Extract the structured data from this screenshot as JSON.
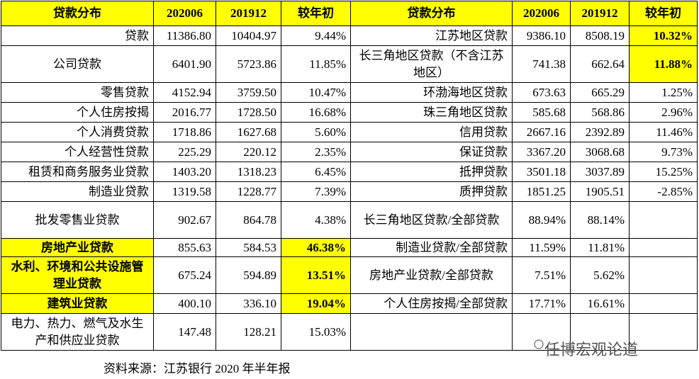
{
  "table": {
    "header": [
      "贷款分布",
      "202006",
      "201912",
      "较年初",
      "贷款分布",
      "202006",
      "201912",
      "较年初"
    ],
    "rows": [
      [
        "贷款",
        "11386.80",
        "10404.97",
        "9.44%",
        "江苏地区贷款",
        "9386.10",
        "8508.19",
        "10.32%"
      ],
      [
        "公司贷款",
        "6401.90",
        "5723.86",
        "11.85%",
        "长三角地区贷款（不含江苏地区）",
        "741.38",
        "662.64",
        "11.88%"
      ],
      [
        "零售贷款",
        "4152.94",
        "3759.50",
        "10.47%",
        "环渤海地区贷款",
        "673.63",
        "665.29",
        "1.25%"
      ],
      [
        "个人住房按揭",
        "2016.77",
        "1728.50",
        "16.68%",
        "珠三角地区贷款",
        "585.68",
        "568.86",
        "2.96%"
      ],
      [
        "个人消费贷款",
        "1718.86",
        "1627.68",
        "5.60%",
        "信用贷款",
        "2667.16",
        "2392.89",
        "11.46%"
      ],
      [
        "个人经营性贷款",
        "225.29",
        "220.12",
        "2.35%",
        "保证贷款",
        "3367.20",
        "3068.68",
        "9.73%"
      ],
      [
        "租赁和商务服务业贷款",
        "1403.20",
        "1318.23",
        "6.45%",
        "抵押贷款",
        "3501.18",
        "3037.89",
        "15.25%"
      ],
      [
        "制造业贷款",
        "1319.58",
        "1228.77",
        "7.39%",
        "质押贷款",
        "1851.25",
        "1905.51",
        "-2.85%"
      ],
      [
        "批发零售业贷款",
        "902.67",
        "864.78",
        "4.38%",
        "长三角地区贷款/全部贷款",
        "88.94%",
        "88.14%",
        null
      ],
      [
        "房地产业贷款",
        "855.63",
        "584.53",
        "46.38%",
        "制造业贷款/全部贷款",
        "11.59%",
        "11.81%",
        null
      ],
      [
        "水利、环境和公共设施管理业贷款",
        "675.24",
        "594.89",
        "13.51%",
        "房地产业贷款/全部贷款",
        "7.51%",
        "5.62%",
        null
      ],
      [
        "建筑业贷款",
        "400.10",
        "336.10",
        "19.04%",
        "个人住房按揭/全部贷款",
        "17.71%",
        "16.61%",
        null
      ],
      [
        "电力、热力、燃气及水生产和供应业贷款",
        "147.48",
        "128.21",
        "15.03%",
        null,
        null,
        null,
        null
      ]
    ]
  },
  "source": "资料来源：江苏银行 2020 年半年报",
  "watermark": "任博宏观论道"
}
